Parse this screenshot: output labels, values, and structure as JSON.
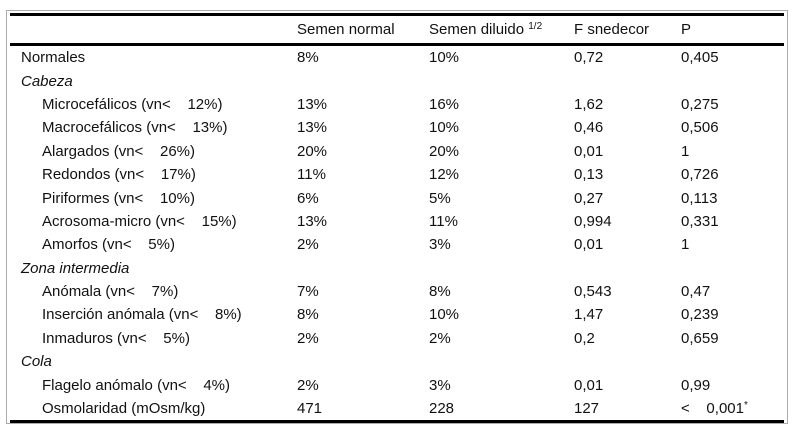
{
  "table": {
    "header": {
      "col_label": "",
      "col_semen_normal": "Semen normal",
      "col_semen_diluido": "Semen diluido ",
      "col_semen_diluido_sup": "1/2",
      "col_f_snedecor": "F snedecor",
      "col_p": "P"
    },
    "rows": [
      {
        "label": "Normales",
        "c1": "8%",
        "c2": "10%",
        "c3": "0,72",
        "c4": "0,405",
        "c4_sup": ""
      },
      {
        "label": "Cabeza",
        "c1": "",
        "c2": "",
        "c3": "",
        "c4": "",
        "c4_sup": ""
      },
      {
        "label": "Microcefálicos (vn<    12%)",
        "c1": "13%",
        "c2": "16%",
        "c3": "1,62",
        "c4": "0,275",
        "c4_sup": ""
      },
      {
        "label": "Macrocefálicos (vn<    13%)",
        "c1": "13%",
        "c2": "10%",
        "c3": "0,46",
        "c4": "0,506",
        "c4_sup": ""
      },
      {
        "label": "Alargados (vn<    26%)",
        "c1": "20%",
        "c2": "20%",
        "c3": "0,01",
        "c4": "1",
        "c4_sup": ""
      },
      {
        "label": "Redondos (vn<    17%)",
        "c1": "11%",
        "c2": "12%",
        "c3": "0,13",
        "c4": "0,726",
        "c4_sup": ""
      },
      {
        "label": "Piriformes (vn<    10%)",
        "c1": "6%",
        "c2": "5%",
        "c3": "0,27",
        "c4": "0,113",
        "c4_sup": ""
      },
      {
        "label": "Acrosoma-micro (vn<    15%)",
        "c1": "13%",
        "c2": "11%",
        "c3": "0,994",
        "c4": "0,331",
        "c4_sup": ""
      },
      {
        "label": "Amorfos (vn<    5%)",
        "c1": "2%",
        "c2": "3%",
        "c3": "0,01",
        "c4": "1",
        "c4_sup": ""
      },
      {
        "label": "Zona intermedia",
        "c1": "",
        "c2": "",
        "c3": "",
        "c4": "",
        "c4_sup": ""
      },
      {
        "label": "Anómala (vn<    7%)",
        "c1": "7%",
        "c2": "8%",
        "c3": "0,543",
        "c4": "0,47",
        "c4_sup": ""
      },
      {
        "label": "Inserción anómala (vn<    8%)",
        "c1": "8%",
        "c2": "10%",
        "c3": "1,47",
        "c4": "0,239",
        "c4_sup": ""
      },
      {
        "label": "Inmaduros (vn<    5%)",
        "c1": "2%",
        "c2": "2%",
        "c3": "0,2",
        "c4": "0,659",
        "c4_sup": ""
      },
      {
        "label": "Cola",
        "c1": "",
        "c2": "",
        "c3": "",
        "c4": "",
        "c4_sup": ""
      },
      {
        "label": "Flagelo anómalo (vn<    4%)",
        "c1": "2%",
        "c2": "3%",
        "c3": "0,01",
        "c4": "0,99",
        "c4_sup": ""
      },
      {
        "label": "Osmolaridad (mOsm/kg)",
        "c1": "471",
        "c2": "228",
        "c3": "127",
        "c4": "<    0,001",
        "c4_sup": "*"
      }
    ]
  },
  "colors": {
    "rule_black": "#000000",
    "frame_gray": "#ababab",
    "text": "#111111",
    "background": "#ffffff"
  }
}
